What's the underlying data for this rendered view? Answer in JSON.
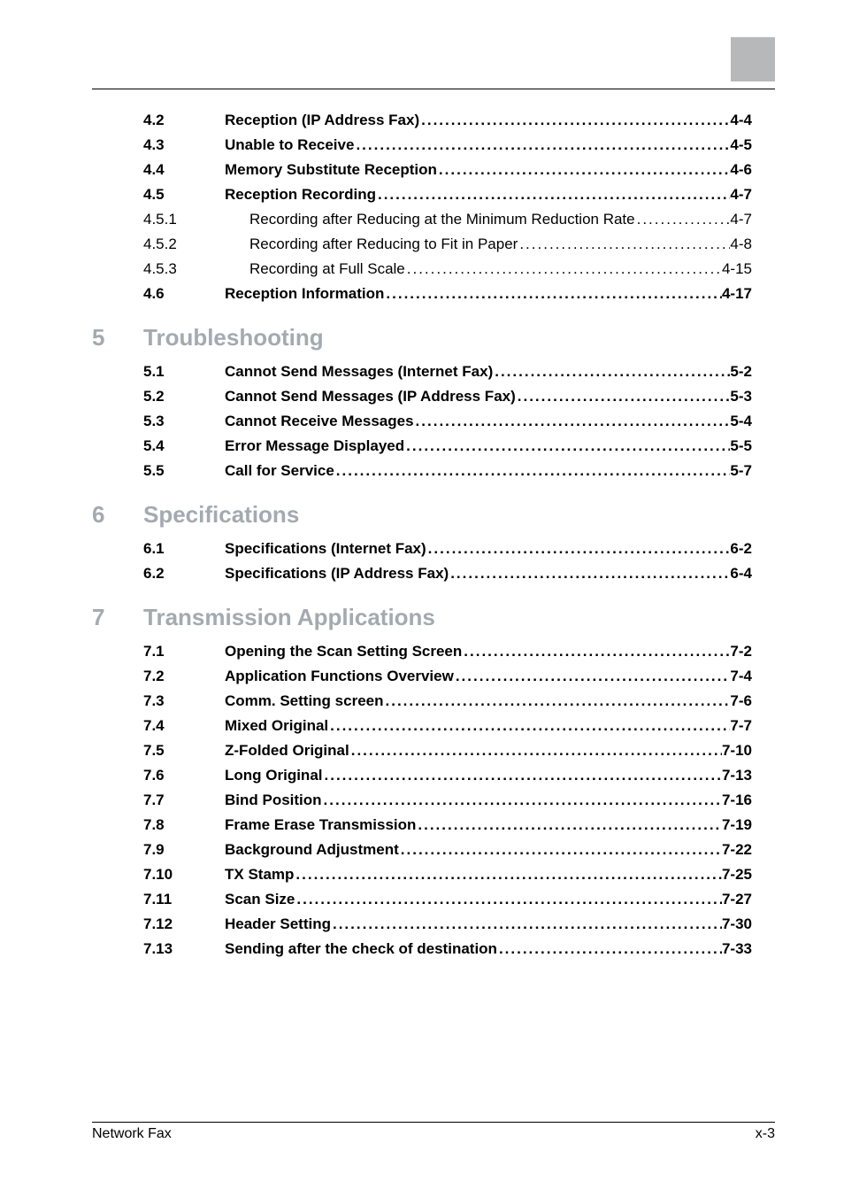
{
  "colors": {
    "corner_box": "#b6b8ba",
    "chapter_text": "#a3aab0",
    "body_text": "#000000",
    "rule": "#000000",
    "background": "#ffffff"
  },
  "typography": {
    "body_fontsize_pt": 12,
    "chapter_fontsize_pt": 19,
    "footer_fontsize_pt": 11
  },
  "leader_dot": ".",
  "footer": {
    "left": "Network Fax",
    "right": "x-3"
  },
  "chapter4_continued": [
    {
      "num": "4.2",
      "title": "Reception (IP Address Fax)",
      "page": "4-4",
      "bold": true
    },
    {
      "num": "4.3",
      "title": "Unable to Receive",
      "page": "4-5",
      "bold": true
    },
    {
      "num": "4.4",
      "title": "Memory Substitute Reception",
      "page": "4-6",
      "bold": true
    },
    {
      "num": "4.5",
      "title": "Reception Recording",
      "page": "4-7",
      "bold": true
    },
    {
      "num": "4.5.1",
      "title": "Recording after Reducing at the Minimum Reduction Rate",
      "page": "4-7",
      "bold": false,
      "indent": true
    },
    {
      "num": "4.5.2",
      "title": "Recording after Reducing to Fit in Paper",
      "page": "4-8",
      "bold": false,
      "indent": true
    },
    {
      "num": "4.5.3",
      "title": "Recording at Full Scale",
      "page": "4-15",
      "bold": false,
      "indent": true
    },
    {
      "num": "4.6",
      "title": "Reception Information",
      "page": "4-17",
      "bold": true
    }
  ],
  "chapters": [
    {
      "num": "5",
      "title": "Troubleshooting",
      "entries": [
        {
          "num": "5.1",
          "title": "Cannot Send Messages (Internet Fax)",
          "page": "5-2",
          "bold": true
        },
        {
          "num": "5.2",
          "title": "Cannot Send Messages (IP Address Fax)",
          "page": "5-3",
          "bold": true
        },
        {
          "num": "5.3",
          "title": "Cannot Receive Messages",
          "page": "5-4",
          "bold": true
        },
        {
          "num": "5.4",
          "title": "Error Message Displayed",
          "page": "5-5",
          "bold": true
        },
        {
          "num": "5.5",
          "title": "Call for Service",
          "page": "5-7",
          "bold": true
        }
      ]
    },
    {
      "num": "6",
      "title": "Specifications",
      "entries": [
        {
          "num": "6.1",
          "title": "Specifications (Internet Fax)",
          "page": "6-2",
          "bold": true
        },
        {
          "num": "6.2",
          "title": "Specifications (IP Address Fax)",
          "page": "6-4",
          "bold": true
        }
      ]
    },
    {
      "num": "7",
      "title": "Transmission Applications",
      "entries": [
        {
          "num": "7.1",
          "title": "Opening the Scan Setting Screen",
          "page": "7-2",
          "bold": true
        },
        {
          "num": "7.2",
          "title": "Application Functions Overview",
          "page": "7-4",
          "bold": true
        },
        {
          "num": "7.3",
          "title": "Comm. Setting screen",
          "page": "7-6",
          "bold": true
        },
        {
          "num": "7.4",
          "title": "Mixed Original",
          "page": "7-7",
          "bold": true
        },
        {
          "num": "7.5",
          "title": "Z-Folded Original",
          "page": "7-10",
          "bold": true
        },
        {
          "num": "7.6",
          "title": "Long Original",
          "page": "7-13",
          "bold": true
        },
        {
          "num": "7.7",
          "title": "Bind Position",
          "page": "7-16",
          "bold": true
        },
        {
          "num": "7.8",
          "title": "Frame Erase Transmission",
          "page": "7-19",
          "bold": true
        },
        {
          "num": "7.9",
          "title": "Background Adjustment",
          "page": "7-22",
          "bold": true
        },
        {
          "num": "7.10",
          "title": "TX Stamp",
          "page": "7-25",
          "bold": true
        },
        {
          "num": "7.11",
          "title": "Scan Size",
          "page": "7-27",
          "bold": true
        },
        {
          "num": "7.12",
          "title": "Header Setting",
          "page": "7-30",
          "bold": true
        },
        {
          "num": "7.13",
          "title": "Sending after the check of destination",
          "page": "7-33",
          "bold": true
        }
      ]
    }
  ]
}
